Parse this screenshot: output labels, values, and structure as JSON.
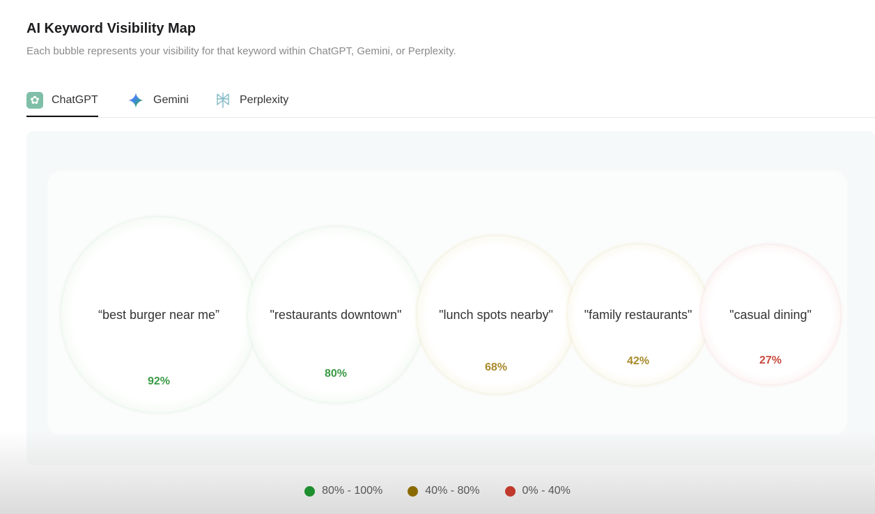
{
  "header": {
    "title": "AI Keyword Visibility Map",
    "subtitle": "Each bubble represents your visibility for that keyword within ChatGPT, Gemini, or Perplexity."
  },
  "tabs": [
    {
      "label": "ChatGPT",
      "icon": "chatgpt-icon",
      "active": true
    },
    {
      "label": "Gemini",
      "icon": "gemini-icon"
    },
    {
      "label": "Perplexity",
      "icon": "perplexity-icon"
    }
  ],
  "chart_data": {
    "type": "bubble",
    "title": "AI Keyword Visibility Map",
    "engine": "ChatGPT",
    "points": [
      {
        "keyword": "“best burger near me”",
        "value": 92,
        "label": "92%"
      },
      {
        "keyword": "\"restaurants downtown\"",
        "value": 80,
        "label": "80%"
      },
      {
        "keyword": "\"lunch spots nearby\"",
        "value": 68,
        "label": "68%"
      },
      {
        "keyword": "\"family restaurants\"",
        "value": 42,
        "label": "42%"
      },
      {
        "keyword": "\"casual dining\"",
        "value": 27,
        "label": "27%"
      }
    ],
    "legend": [
      {
        "label": "80% - 100%",
        "color": "#1e8f2e",
        "min": 80,
        "max": 100,
        "text_color": "#3a9a45",
        "tint": "#dcefdc"
      },
      {
        "label": "40% - 80%",
        "color": "#8a6a00",
        "min": 40,
        "max": 80,
        "text_color": "#a88a2a",
        "tint": "#efe9c8"
      },
      {
        "label": "0% - 40%",
        "color": "#c0392b",
        "min": 0,
        "max": 40,
        "text_color": "#c94a3e",
        "tint": "#f7dcda"
      }
    ],
    "legend_position": "bottom-center"
  }
}
